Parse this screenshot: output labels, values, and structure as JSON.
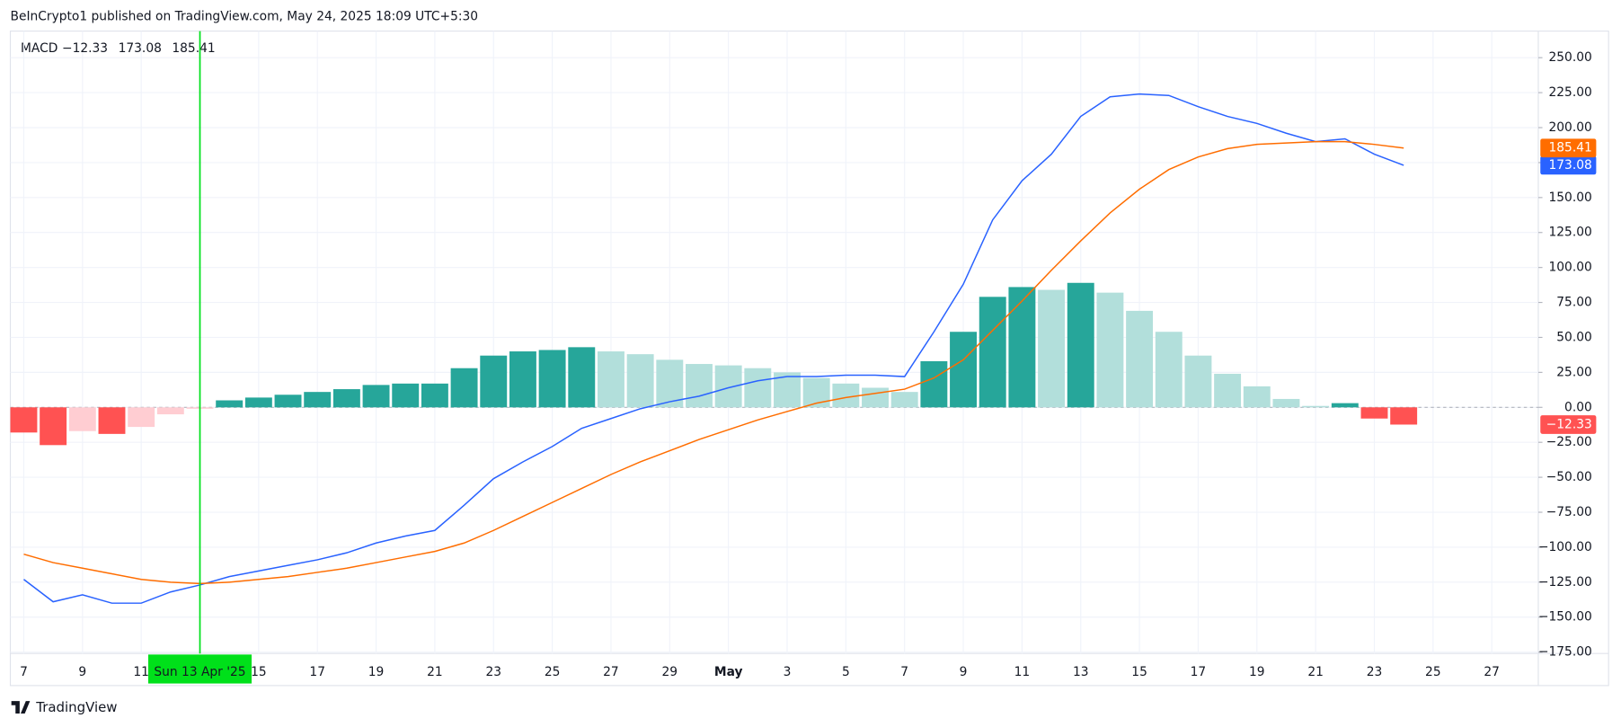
{
  "header": "BeInCrypto1 published on TradingView.com, May 24, 2025 18:09 UTC+5:30",
  "footer": "TradingView",
  "chart_data": {
    "type": "bar",
    "legend_title": "MACD",
    "categories": [
      "7",
      null,
      "9",
      null,
      "11",
      null,
      null,
      null,
      "15",
      null,
      "17",
      null,
      "19",
      null,
      "21",
      null,
      "23",
      null,
      "25",
      null,
      "27",
      null,
      "29",
      null,
      "May",
      null,
      "3",
      null,
      "5",
      null,
      "7",
      null,
      "9",
      null,
      "11",
      null,
      "13",
      null,
      "15",
      null,
      "17",
      null,
      "19",
      null,
      "21",
      null,
      "23",
      null,
      "25",
      null,
      "27"
    ],
    "crosshair": {
      "index": 6,
      "label": "Sun 13 Apr '25",
      "color": "#00e01a"
    },
    "ylim": [
      -176,
      269
    ],
    "yticks": [
      {
        "value": 250,
        "label": "250.00"
      },
      {
        "value": 225,
        "label": "225.00"
      },
      {
        "value": 200,
        "label": "200.00"
      },
      {
        "value": 175,
        "label": "175.00"
      },
      {
        "value": 150,
        "label": "150.00"
      },
      {
        "value": 125,
        "label": "125.00"
      },
      {
        "value": 100,
        "label": "100.00"
      },
      {
        "value": 75,
        "label": "75.00"
      },
      {
        "value": 50,
        "label": "50.00"
      },
      {
        "value": 25,
        "label": "25.00"
      },
      {
        "value": 0,
        "label": "0.00"
      },
      {
        "value": -25,
        "label": "−25.00"
      },
      {
        "value": -50,
        "label": "−50.00"
      },
      {
        "value": -75,
        "label": "−75.00"
      },
      {
        "value": -100,
        "label": "−100.00"
      },
      {
        "value": -125,
        "label": "−125.00"
      },
      {
        "value": -150,
        "label": "−150.00"
      },
      {
        "value": -175,
        "label": "−175.00"
      }
    ],
    "grid": true,
    "series": [
      {
        "type": "bar",
        "color": "#ff5252",
        "value_label": "−12.33",
        "values": [
          -18,
          -27,
          -17,
          -19,
          -14,
          -5,
          -1,
          5,
          7,
          9,
          11,
          13,
          16,
          17,
          17,
          28,
          37,
          40,
          41,
          43,
          40,
          38,
          34,
          31,
          30,
          28,
          25,
          21,
          17,
          14,
          11,
          33,
          54,
          79,
          86,
          84,
          89,
          82,
          69,
          54,
          37,
          24,
          15,
          6,
          1,
          3,
          -8,
          -12.33,
          null,
          null,
          null
        ],
        "colors": [
          "#ff5252",
          "#ff5252",
          "#ffcdd2",
          "#ff5252",
          "#ffcdd2",
          "#ffcdd2",
          "#ffcdd2",
          "#26a69a",
          "#26a69a",
          "#26a69a",
          "#26a69a",
          "#26a69a",
          "#26a69a",
          "#26a69a",
          "#26a69a",
          "#26a69a",
          "#26a69a",
          "#26a69a",
          "#26a69a",
          "#26a69a",
          "#b2dfdb",
          "#b2dfdb",
          "#b2dfdb",
          "#b2dfdb",
          "#b2dfdb",
          "#b2dfdb",
          "#b2dfdb",
          "#b2dfdb",
          "#b2dfdb",
          "#b2dfdb",
          "#b2dfdb",
          "#26a69a",
          "#26a69a",
          "#26a69a",
          "#26a69a",
          "#b2dfdb",
          "#26a69a",
          "#b2dfdb",
          "#b2dfdb",
          "#b2dfdb",
          "#b2dfdb",
          "#b2dfdb",
          "#b2dfdb",
          "#b2dfdb",
          "#b2dfdb",
          "#26a69a",
          "#ff5252",
          "#ff5252",
          null,
          null,
          null
        ]
      },
      {
        "type": "line",
        "color": "#2962ff",
        "value_label": "173.08",
        "values": [
          -123,
          -139,
          -134,
          -140,
          -140,
          -132,
          -127,
          -121,
          -117,
          -113,
          -109,
          -104,
          -97,
          -92,
          -88,
          -70,
          -51,
          -39,
          -28,
          -15,
          -8,
          -1,
          4,
          8,
          14,
          19,
          22,
          22,
          23,
          23,
          22,
          54,
          88,
          134,
          162,
          181,
          208,
          222,
          224,
          223,
          215,
          208,
          203,
          196,
          190,
          192,
          181,
          173.08,
          null,
          null,
          null
        ]
      },
      {
        "type": "line",
        "color": "#ff6d00",
        "value_label": "185.41",
        "values": [
          -105,
          -111,
          -115,
          -119,
          -123,
          -125,
          -126,
          -125,
          -123,
          -121,
          -118,
          -115,
          -111,
          -107,
          -103,
          -97,
          -88,
          -78,
          -68,
          -58,
          -48,
          -39,
          -31,
          -23,
          -16,
          -9,
          -3,
          3,
          7,
          10,
          13,
          21,
          34,
          55,
          76,
          98,
          119,
          139,
          156,
          170,
          179,
          185,
          188,
          189,
          190,
          190,
          188,
          185.41,
          null,
          null,
          null
        ]
      }
    ]
  }
}
